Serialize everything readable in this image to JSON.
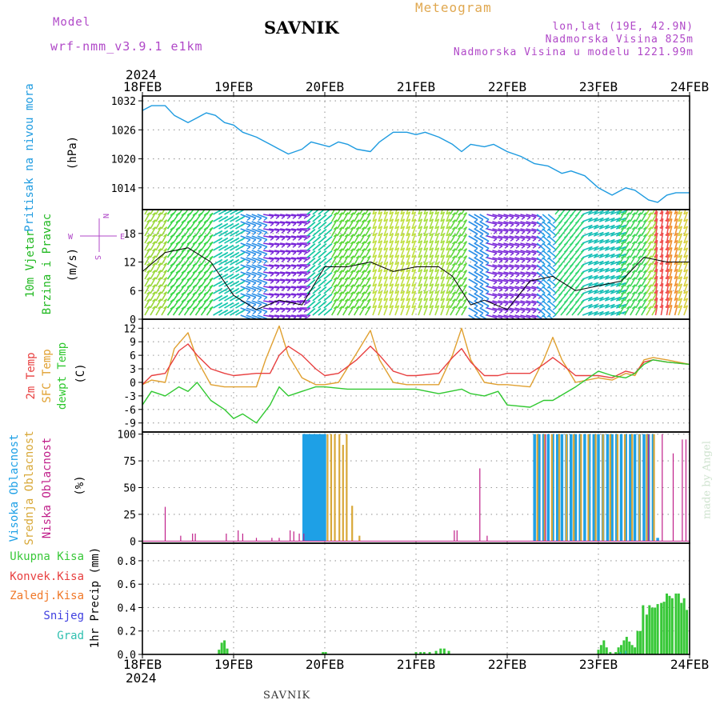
{
  "header": {
    "model_label": "Model",
    "model_name": "wrf-nmm_v3.9.1 e1km",
    "title": "SAVNIK",
    "meteogram": "Meteogram",
    "lonlat": "lon,lat (19E, 42.9N)",
    "elevation": "Nadmorska Visina 825m",
    "model_elevation": "Nadmorska Visina u modelu 1221.99m"
  },
  "footer": {
    "station": "SAVNIK",
    "credit": "made by Angel"
  },
  "year": "2024",
  "dates": [
    "18FEB",
    "19FEB",
    "20FEB",
    "21FEB",
    "22FEB",
    "23FEB",
    "24FEB"
  ],
  "colors": {
    "pressure": "#1e9be0",
    "temp2m": "#e84040",
    "sfctemp": "#e0a030",
    "dewpt": "#30c830",
    "high_cloud": "#1ea0e6",
    "mid_cloud": "#d8a838",
    "low_cloud": "#c0208a",
    "total_precip": "#38c838",
    "conv_precip": "#e84040",
    "frozen_precip": "#f07828",
    "snow": "#4040e0",
    "graupel": "#30c0b0",
    "wind_label": "#20b820",
    "compass": "#b048c8"
  },
  "chart_data": [
    {
      "type": "line",
      "panel": "pressure",
      "ylabel_lines": [
        "Pritisak na nivou mora",
        "(hPa)"
      ],
      "yticks": [
        1014,
        1020,
        1026,
        1032
      ],
      "ylim": [
        1009.5,
        1033
      ],
      "xlim": [
        0,
        6
      ],
      "grid": true,
      "series": [
        {
          "key": "pressure",
          "x": [
            0,
            0.1,
            0.25,
            0.35,
            0.5,
            0.6,
            0.7,
            0.8,
            0.9,
            1.0,
            1.1,
            1.25,
            1.4,
            1.5,
            1.6,
            1.75,
            1.85,
            1.95,
            2.05,
            2.15,
            2.25,
            2.35,
            2.5,
            2.6,
            2.75,
            2.9,
            3.0,
            3.1,
            3.25,
            3.4,
            3.5,
            3.6,
            3.75,
            3.85,
            4.0,
            4.15,
            4.3,
            4.45,
            4.6,
            4.7,
            4.85,
            5.0,
            5.15,
            5.3,
            5.4,
            5.55,
            5.65,
            5.75,
            5.85,
            6.0
          ],
          "values": [
            1030,
            1031,
            1031,
            1029,
            1027.5,
            1028.5,
            1029.5,
            1029,
            1027.5,
            1027,
            1025.5,
            1024.5,
            1023,
            1022,
            1021,
            1022,
            1023.5,
            1023,
            1022.5,
            1023.5,
            1023,
            1022,
            1021.5,
            1023.5,
            1025.5,
            1025.5,
            1025,
            1025.5,
            1024.5,
            1023,
            1021.5,
            1023,
            1022.5,
            1023,
            1021.5,
            1020.5,
            1019,
            1018.5,
            1017,
            1017.5,
            1016.5,
            1014,
            1012.5,
            1014,
            1013.5,
            1011.5,
            1011,
            1012.5,
            1013,
            1013
          ]
        }
      ]
    },
    {
      "type": "line",
      "panel": "wind",
      "ylabel_lines": [
        "10m Vjetar",
        "Brzina i Pravac",
        "(m/s)"
      ],
      "compass_label": "N S E W",
      "yticks": [
        0,
        6,
        12,
        18
      ],
      "ylim": [
        0,
        23
      ],
      "xlim": [
        0,
        6
      ],
      "grid": true,
      "series": [
        {
          "key": "wind_speed",
          "x": [
            0,
            0.25,
            0.5,
            0.75,
            1.0,
            1.25,
            1.5,
            1.75,
            2.0,
            2.25,
            2.5,
            2.75,
            3.0,
            3.25,
            3.4,
            3.6,
            3.75,
            4.0,
            4.25,
            4.5,
            4.75,
            5.0,
            5.25,
            5.5,
            5.75,
            6.0
          ],
          "values": [
            10,
            14,
            15,
            12,
            5,
            2,
            4,
            3,
            11,
            11,
            12,
            10,
            11,
            11,
            9,
            3,
            4,
            2,
            8,
            9,
            6,
            7,
            8,
            13,
            12,
            12
          ]
        }
      ]
    },
    {
      "type": "line",
      "panel": "temperature",
      "ylabel_lines": [
        "2m Temp",
        "SFC Temp",
        "dewpt Temp",
        "(C)"
      ],
      "yticks": [
        -9,
        -6,
        -3,
        0,
        3,
        6,
        9,
        12
      ],
      "ylim": [
        -11,
        14
      ],
      "xlim": [
        0,
        6
      ],
      "grid": true,
      "series": [
        {
          "key": "temp2m",
          "x": [
            0,
            0.1,
            0.25,
            0.4,
            0.5,
            0.6,
            0.75,
            0.9,
            1.0,
            1.25,
            1.4,
            1.5,
            1.6,
            1.75,
            1.9,
            2.0,
            2.15,
            2.35,
            2.5,
            2.6,
            2.75,
            2.9,
            3.0,
            3.25,
            3.4,
            3.5,
            3.6,
            3.75,
            3.9,
            4.0,
            4.25,
            4.4,
            4.5,
            4.6,
            4.75,
            5.0,
            5.15,
            5.3,
            5.4,
            5.5,
            5.6,
            5.75,
            6.0
          ],
          "values": [
            -0.5,
            1.5,
            2,
            7,
            8.5,
            6,
            3,
            2,
            1.5,
            2,
            2,
            6,
            8,
            6,
            3,
            1.5,
            2,
            5,
            8,
            6,
            2.5,
            1.5,
            1.5,
            2,
            5.5,
            7.5,
            4.5,
            1.5,
            1.5,
            2,
            2,
            4,
            5.5,
            4,
            1.5,
            1.5,
            1,
            2.5,
            2,
            4.5,
            5,
            4.5,
            4
          ]
        },
        {
          "key": "sfctemp",
          "x": [
            0,
            0.1,
            0.25,
            0.35,
            0.5,
            0.6,
            0.75,
            0.9,
            1.0,
            1.25,
            1.35,
            1.5,
            1.6,
            1.75,
            1.9,
            2.0,
            2.15,
            2.35,
            2.5,
            2.6,
            2.75,
            2.9,
            3.0,
            3.25,
            3.4,
            3.5,
            3.6,
            3.75,
            3.9,
            4.0,
            4.25,
            4.4,
            4.5,
            4.6,
            4.75,
            5.0,
            5.15,
            5.3,
            5.4,
            5.5,
            5.6,
            5.75,
            6.0
          ],
          "values": [
            -0.5,
            0.5,
            0,
            7.5,
            11,
            5,
            -0.5,
            -1,
            -1,
            -1,
            5,
            12.5,
            6,
            1,
            -0.5,
            -0.5,
            0,
            6.5,
            11.5,
            5,
            0,
            -0.5,
            -0.5,
            -0.5,
            6,
            12,
            5,
            0,
            -0.5,
            -0.5,
            -1,
            5,
            10,
            5,
            0,
            1,
            0.5,
            2,
            1.5,
            5,
            5.5,
            5,
            4
          ]
        },
        {
          "key": "dewpt",
          "x": [
            0,
            0.1,
            0.25,
            0.4,
            0.5,
            0.6,
            0.75,
            0.9,
            1.0,
            1.1,
            1.25,
            1.4,
            1.5,
            1.6,
            1.75,
            1.9,
            2.0,
            2.25,
            2.5,
            2.75,
            3.0,
            3.25,
            3.5,
            3.6,
            3.75,
            3.9,
            4.0,
            4.25,
            4.4,
            4.5,
            4.75,
            5.0,
            5.15,
            5.3,
            5.4,
            5.5,
            5.6,
            5.75,
            6.0
          ],
          "values": [
            -5,
            -2,
            -3,
            -1,
            -2,
            0,
            -4,
            -6,
            -8,
            -7,
            -9,
            -5,
            -1,
            -3,
            -2,
            -1,
            -1,
            -1.5,
            -1.5,
            -1.5,
            -1.5,
            -2.5,
            -1.5,
            -2.5,
            -3,
            -2,
            -5,
            -5.5,
            -4,
            -4,
            -1,
            2.5,
            1.5,
            1,
            2,
            4,
            5,
            4.5,
            4
          ]
        }
      ]
    },
    {
      "type": "bar",
      "panel": "cloud",
      "ylabel_lines": [
        "Visoka Oblacnost",
        "Srednja Oblacnost",
        "Niska Oblacnost",
        "(%)"
      ],
      "yticks": [
        0,
        25,
        50,
        75,
        100
      ],
      "ylim": [
        -2,
        102
      ],
      "xlim": [
        0,
        6
      ],
      "grid": true,
      "series": [
        {
          "key": "high_cloud",
          "bars": [
            [
              1.77,
              100
            ],
            [
              1.78,
              100
            ],
            [
              1.8,
              100
            ],
            [
              1.82,
              100
            ],
            [
              1.84,
              100
            ],
            [
              1.86,
              100
            ],
            [
              1.88,
              100
            ],
            [
              1.9,
              100
            ],
            [
              1.92,
              100
            ],
            [
              1.94,
              100
            ],
            [
              1.96,
              100
            ],
            [
              1.98,
              100
            ],
            [
              2.0,
              100
            ],
            [
              4.3,
              100
            ],
            [
              4.35,
              100
            ],
            [
              4.4,
              100
            ],
            [
              4.45,
              100
            ],
            [
              4.5,
              100
            ],
            [
              4.55,
              100
            ],
            [
              4.6,
              100
            ],
            [
              4.65,
              100
            ],
            [
              4.7,
              100
            ],
            [
              4.75,
              100
            ],
            [
              4.8,
              100
            ],
            [
              4.85,
              100
            ],
            [
              4.9,
              100
            ],
            [
              4.95,
              100
            ],
            [
              5.0,
              100
            ],
            [
              5.05,
              100
            ],
            [
              5.1,
              100
            ],
            [
              5.15,
              100
            ],
            [
              5.2,
              100
            ],
            [
              5.25,
              100
            ],
            [
              5.3,
              100
            ],
            [
              5.35,
              100
            ],
            [
              5.4,
              100
            ],
            [
              5.45,
              100
            ],
            [
              5.5,
              100
            ],
            [
              5.55,
              100
            ],
            [
              5.6,
              100
            ],
            [
              5.65,
              3
            ]
          ]
        },
        {
          "key": "mid_cloud",
          "bars": [
            [
              2.03,
              100
            ],
            [
              2.07,
              100
            ],
            [
              2.11,
              100
            ],
            [
              2.16,
              100
            ],
            [
              2.2,
              90
            ],
            [
              2.24,
              100
            ],
            [
              2.3,
              33
            ],
            [
              2.38,
              5
            ],
            [
              4.33,
              100
            ],
            [
              4.41,
              100
            ],
            [
              4.49,
              100
            ],
            [
              4.57,
              100
            ],
            [
              4.65,
              100
            ],
            [
              4.73,
              100
            ],
            [
              4.81,
              100
            ],
            [
              4.89,
              100
            ],
            [
              4.97,
              100
            ],
            [
              5.05,
              100
            ],
            [
              5.13,
              100
            ],
            [
              5.21,
              100
            ],
            [
              5.29,
              100
            ],
            [
              5.37,
              100
            ],
            [
              5.45,
              100
            ],
            [
              5.53,
              100
            ],
            [
              5.61,
              100
            ]
          ]
        },
        {
          "key": "low_cloud",
          "bars": [
            [
              0.25,
              32
            ],
            [
              0.42,
              5
            ],
            [
              0.55,
              7
            ],
            [
              0.58,
              7
            ],
            [
              0.92,
              7
            ],
            [
              1.05,
              10
            ],
            [
              1.1,
              7
            ],
            [
              1.25,
              3
            ],
            [
              1.42,
              3
            ],
            [
              1.5,
              3
            ],
            [
              1.62,
              10
            ],
            [
              1.66,
              9
            ],
            [
              1.72,
              7
            ],
            [
              1.77,
              7
            ],
            [
              3.42,
              10
            ],
            [
              3.45,
              10
            ],
            [
              3.7,
              68
            ],
            [
              3.78,
              5
            ],
            [
              4.42,
              100
            ],
            [
              5.55,
              100
            ],
            [
              5.7,
              100
            ],
            [
              5.82,
              82
            ],
            [
              5.92,
              95
            ],
            [
              5.96,
              95
            ]
          ]
        }
      ]
    },
    {
      "type": "bar",
      "panel": "precip",
      "ylabel_lines": [
        "1hr Precip (mm)"
      ],
      "legend": [
        "Ukupna Kisa",
        "Konvek.Kisa",
        "Zaledj.Kisa",
        "Snijeg",
        "Grad"
      ],
      "yticks": [
        0,
        0.2,
        0.4,
        0.6,
        0.8
      ],
      "ylim": [
        0,
        0.95
      ],
      "xlim": [
        0,
        6
      ],
      "grid": true,
      "series": [
        {
          "key": "total_precip",
          "bars": [
            [
              0.84,
              0.04
            ],
            [
              0.87,
              0.1
            ],
            [
              0.9,
              0.12
            ],
            [
              0.93,
              0.05
            ],
            [
              1.98,
              0.02
            ],
            [
              2.01,
              0.02
            ],
            [
              3.0,
              0.02
            ],
            [
              3.05,
              0.02
            ],
            [
              3.09,
              0.02
            ],
            [
              3.15,
              0.02
            ],
            [
              3.22,
              0.03
            ],
            [
              3.27,
              0.05
            ],
            [
              3.31,
              0.05
            ],
            [
              3.36,
              0.03
            ],
            [
              5.0,
              0.04
            ],
            [
              5.03,
              0.08
            ],
            [
              5.06,
              0.12
            ],
            [
              5.09,
              0.06
            ],
            [
              5.13,
              0.02
            ],
            [
              5.19,
              0.02
            ],
            [
              5.22,
              0.06
            ],
            [
              5.25,
              0.08
            ],
            [
              5.28,
              0.12
            ],
            [
              5.31,
              0.15
            ],
            [
              5.34,
              0.11
            ],
            [
              5.37,
              0.08
            ],
            [
              5.4,
              0.06
            ],
            [
              5.43,
              0.2
            ],
            [
              5.46,
              0.2
            ],
            [
              5.49,
              0.42
            ],
            [
              5.53,
              0.34
            ],
            [
              5.56,
              0.42
            ],
            [
              5.59,
              0.4
            ],
            [
              5.62,
              0.4
            ],
            [
              5.65,
              0.43
            ],
            [
              5.69,
              0.44
            ],
            [
              5.72,
              0.45
            ],
            [
              5.75,
              0.52
            ],
            [
              5.78,
              0.5
            ],
            [
              5.81,
              0.48
            ],
            [
              5.85,
              0.52
            ],
            [
              5.88,
              0.52
            ],
            [
              5.91,
              0.44
            ],
            [
              5.94,
              0.48
            ],
            [
              5.97,
              0.38
            ]
          ]
        },
        {
          "key": "graupel",
          "bars": [
            [
              5.24,
              0.02
            ],
            [
              5.3,
              0.03
            ]
          ]
        }
      ]
    }
  ]
}
